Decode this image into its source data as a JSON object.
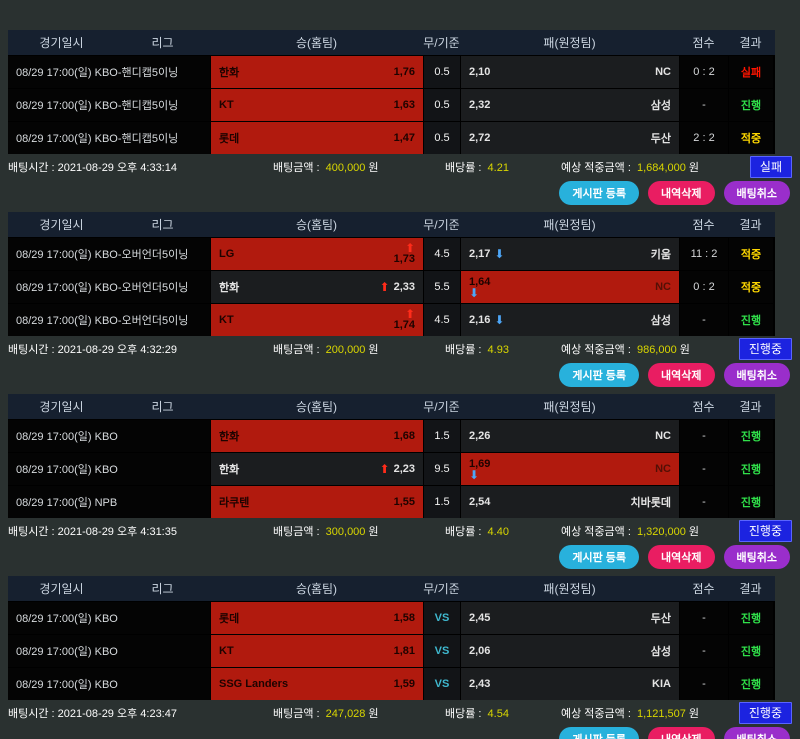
{
  "columns": {
    "datetime": "경기일시",
    "league": "리그",
    "home": "승(홈팀)",
    "draw": "무/기준",
    "away": "패(원정팀)",
    "score": "점수",
    "result": "결과"
  },
  "footer_labels": {
    "time": "배팅시간",
    "amount": "배팅금액",
    "odds": "배당률",
    "expected": "예상 적중금액",
    "currency": "원",
    "sep": " : "
  },
  "icons": {
    "up_arrow": "⬆",
    "down_arrow": "⬇"
  },
  "buttons": [
    {
      "label": "게시판 등록"
    },
    {
      "label": "내역삭제"
    },
    {
      "label": "배팅취소"
    }
  ],
  "sections": [
    {
      "rows": [
        {
          "dt": "08/29 17:00(일) KBO-핸디캡5이닝",
          "home": {
            "name": "한화",
            "odds": "1,76",
            "sel": true,
            "arrow": null
          },
          "draw": "0.5",
          "away": {
            "odds": "2,10",
            "name": "NC",
            "sel": false,
            "arrow": null
          },
          "score": "0 : 2",
          "result": {
            "label": "실패",
            "type": "fail"
          }
        },
        {
          "dt": "08/29 17:00(일) KBO-핸디캡5이닝",
          "home": {
            "name": "KT",
            "odds": "1,63",
            "sel": true,
            "arrow": null
          },
          "draw": "0.5",
          "away": {
            "odds": "2,32",
            "name": "삼성",
            "sel": false,
            "arrow": null
          },
          "score": "-",
          "result": {
            "label": "진행",
            "type": "ongoing"
          }
        },
        {
          "dt": "08/29 17:00(일) KBO-핸디캡5이닝",
          "home": {
            "name": "롯데",
            "odds": "1,47",
            "sel": true,
            "arrow": null
          },
          "draw": "0.5",
          "away": {
            "odds": "2,72",
            "name": "두산",
            "sel": false,
            "arrow": null
          },
          "score": "2 : 2",
          "result": {
            "label": "적중",
            "type": "hit"
          }
        }
      ],
      "footer": {
        "time": "2021-08-29 오후 4:33:14",
        "amount": "400,000",
        "odds": "4.21",
        "expected": "1,684,000",
        "status": "실패"
      }
    },
    {
      "rows": [
        {
          "dt": "08/29 17:00(일) KBO-오버언더5이닝",
          "home": {
            "name": "LG",
            "odds": "1,73",
            "sel": true,
            "arrow": "up-stacked"
          },
          "draw": "4.5",
          "away": {
            "odds": "2,17",
            "name": "키움",
            "sel": false,
            "arrow": "down-inline"
          },
          "score": "11 : 2",
          "result": {
            "label": "적중",
            "type": "hit"
          }
        },
        {
          "dt": "08/29 17:00(일) KBO-오버언더5이닝",
          "home": {
            "name": "한화",
            "odds": "2,33",
            "sel": false,
            "arrow": "up-inline"
          },
          "draw": "5.5",
          "away": {
            "odds": "1,64",
            "name": "NC",
            "sel": true,
            "arrow": "down-stacked"
          },
          "score": "0 : 2",
          "result": {
            "label": "적중",
            "type": "hit"
          }
        },
        {
          "dt": "08/29 17:00(일) KBO-오버언더5이닝",
          "home": {
            "name": "KT",
            "odds": "1,74",
            "sel": true,
            "arrow": "up-stacked"
          },
          "draw": "4.5",
          "away": {
            "odds": "2,16",
            "name": "삼성",
            "sel": false,
            "arrow": "down-inline"
          },
          "score": "-",
          "result": {
            "label": "진행",
            "type": "ongoing"
          }
        }
      ],
      "footer": {
        "time": "2021-08-29 오후 4:32:29",
        "amount": "200,000",
        "odds": "4.93",
        "expected": "986,000",
        "status": "진행중"
      }
    },
    {
      "rows": [
        {
          "dt": "08/29 17:00(일) KBO",
          "home": {
            "name": "한화",
            "odds": "1,68",
            "sel": true,
            "arrow": null
          },
          "draw": "1.5",
          "away": {
            "odds": "2,26",
            "name": "NC",
            "sel": false,
            "arrow": null
          },
          "score": "-",
          "result": {
            "label": "진행",
            "type": "ongoing"
          }
        },
        {
          "dt": "08/29 17:00(일) KBO",
          "home": {
            "name": "한화",
            "odds": "2,23",
            "sel": false,
            "arrow": "up-inline"
          },
          "draw": "9.5",
          "away": {
            "odds": "1,69",
            "name": "NC",
            "sel": true,
            "arrow": "down-stacked"
          },
          "score": "-",
          "result": {
            "label": "진행",
            "type": "ongoing"
          }
        },
        {
          "dt": "08/29 17:00(일) NPB",
          "home": {
            "name": "라쿠텐",
            "odds": "1,55",
            "sel": true,
            "arrow": null
          },
          "draw": "1.5",
          "away": {
            "odds": "2,54",
            "name": "치바롯데",
            "sel": false,
            "arrow": null
          },
          "score": "-",
          "result": {
            "label": "진행",
            "type": "ongoing"
          }
        }
      ],
      "footer": {
        "time": "2021-08-29 오후 4:31:35",
        "amount": "300,000",
        "odds": "4.40",
        "expected": "1,320,000",
        "status": "진행중"
      }
    },
    {
      "rows": [
        {
          "dt": "08/29 17:00(일) KBO",
          "home": {
            "name": "롯데",
            "odds": "1,58",
            "sel": true,
            "arrow": null
          },
          "draw": "VS",
          "away": {
            "odds": "2,45",
            "name": "두산",
            "sel": false,
            "arrow": null
          },
          "score": "-",
          "result": {
            "label": "진행",
            "type": "ongoing"
          }
        },
        {
          "dt": "08/29 17:00(일) KBO",
          "home": {
            "name": "KT",
            "odds": "1,81",
            "sel": true,
            "arrow": null
          },
          "draw": "VS",
          "away": {
            "odds": "2,06",
            "name": "삼성",
            "sel": false,
            "arrow": null
          },
          "score": "-",
          "result": {
            "label": "진행",
            "type": "ongoing"
          }
        },
        {
          "dt": "08/29 17:00(일) KBO",
          "home": {
            "name": "SSG Landers",
            "odds": "1,59",
            "sel": true,
            "arrow": null
          },
          "draw": "VS",
          "away": {
            "odds": "2,43",
            "name": "KIA",
            "sel": false,
            "arrow": null
          },
          "score": "-",
          "result": {
            "label": "진행",
            "type": "ongoing"
          }
        }
      ],
      "footer": {
        "time": "2021-08-29 오후 4:23:47",
        "amount": "247,028",
        "odds": "4.54",
        "expected": "1,121,507",
        "status": "진행중"
      }
    }
  ]
}
